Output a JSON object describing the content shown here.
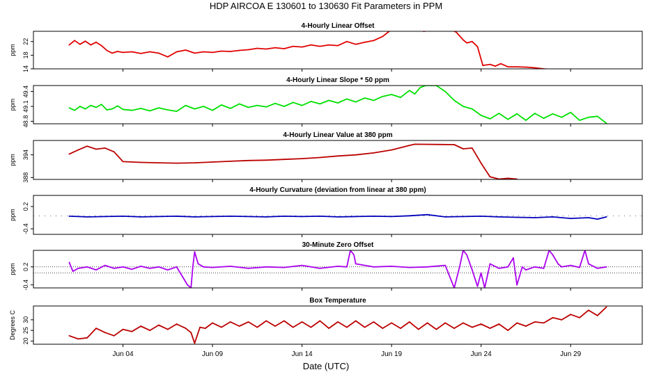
{
  "header": {
    "title": "HDP    AIRCOA E    130601 to 130630    Fit Parameters in PPM"
  },
  "xaxis": {
    "label": "Date (UTC)",
    "ticks": [
      "Jun 04",
      "Jun 09",
      "Jun 14",
      "Jun 19",
      "Jun 24",
      "Jun 29"
    ]
  },
  "chart_data": [
    {
      "type": "line",
      "title": "4-Hourly Linear Offset",
      "ylabel": "ppm",
      "ylim": [
        14,
        25
      ],
      "yticks": [
        "14",
        "18",
        "22"
      ],
      "color": "#e00000",
      "series": [
        {
          "x": [
            1.0,
            1.3,
            1.6,
            1.9,
            2.2,
            2.5,
            2.8,
            3.1,
            3.4,
            3.7,
            4.0,
            4.5,
            5.0,
            5.5,
            6.0,
            6.5,
            7.0,
            7.5,
            8.0,
            8.5,
            9.0,
            9.5,
            10.0,
            10.5,
            11.0,
            11.5,
            12.0,
            12.5,
            13.0,
            13.5,
            14.0,
            14.5,
            15.0,
            15.5,
            16.0,
            16.5,
            17.0,
            17.5,
            18.0,
            18.5,
            19.0,
            19.5,
            20.0,
            20.5,
            20.8,
            21.7,
            22.3,
            22.6,
            23.0,
            23.2,
            23.5,
            23.8,
            24.1,
            24.5,
            24.8,
            25.1,
            25.5,
            26.0,
            26.5,
            27.0,
            27.5,
            28.0
          ],
          "y": [
            21.0,
            22.3,
            21.2,
            22.1,
            21.0,
            21.8,
            20.8,
            19.4,
            18.6,
            19.1,
            18.8,
            19.0,
            18.5,
            19.0,
            18.6,
            17.5,
            19.0,
            19.5,
            18.6,
            19.0,
            18.8,
            19.2,
            19.1,
            19.4,
            19.6,
            20.0,
            19.8,
            20.2,
            19.9,
            20.6,
            20.4,
            21.0,
            20.6,
            21.0,
            20.8,
            22.0,
            21.2,
            21.8,
            22.3,
            23.5,
            25.5,
            25.3,
            25.2,
            25.4,
            25.0,
            25.5,
            25.5,
            24.8,
            22.5,
            21.6,
            22.0,
            20.5,
            15.0,
            15.3,
            14.8,
            15.5,
            14.6,
            14.6,
            14.5,
            14.3,
            14.0,
            13.8
          ]
        }
      ]
    },
    {
      "type": "line",
      "title": "4-Hourly Linear Slope * 50 ppm",
      "ylabel": "ppm",
      "ylim": [
        48.75,
        49.52
      ],
      "yticks": [
        "48.8",
        "49.1",
        "49.4"
      ],
      "color": "#00e000",
      "series": [
        {
          "x": [
            1.0,
            1.3,
            1.6,
            1.9,
            2.2,
            2.5,
            2.8,
            3.1,
            3.4,
            3.7,
            4.0,
            4.5,
            5.0,
            5.5,
            6.0,
            6.5,
            7.0,
            7.5,
            8.0,
            8.5,
            9.0,
            9.5,
            10.0,
            10.5,
            11.0,
            11.5,
            12.0,
            12.5,
            13.0,
            13.5,
            14.0,
            14.5,
            15.0,
            15.5,
            16.0,
            16.5,
            17.0,
            17.5,
            18.0,
            18.5,
            19.0,
            19.5,
            20.0,
            20.3,
            20.6,
            20.9,
            21.2,
            21.5,
            22.0,
            22.5,
            23.0,
            23.5,
            24.0,
            24.5,
            25.0,
            25.5,
            26.0,
            26.5,
            27.0,
            27.5,
            28.0,
            28.5,
            29.0,
            29.5,
            30.0,
            30.5,
            31.0
          ],
          "y": [
            49.07,
            49.02,
            49.1,
            49.05,
            49.12,
            49.08,
            49.14,
            49.03,
            49.05,
            49.11,
            49.04,
            49.02,
            49.06,
            49.01,
            49.07,
            49.03,
            49.0,
            49.12,
            49.05,
            49.1,
            49.02,
            49.13,
            49.06,
            49.15,
            49.08,
            49.12,
            49.09,
            49.16,
            49.1,
            49.18,
            49.12,
            49.2,
            49.15,
            49.22,
            49.17,
            49.25,
            49.19,
            49.27,
            49.22,
            49.3,
            49.34,
            49.28,
            49.42,
            49.35,
            49.48,
            49.52,
            49.52,
            49.52,
            49.4,
            49.22,
            49.1,
            49.05,
            48.92,
            48.85,
            48.96,
            48.84,
            48.95,
            48.82,
            48.96,
            48.86,
            48.95,
            48.88,
            48.98,
            48.82,
            48.88,
            48.9,
            48.76
          ]
        }
      ]
    },
    {
      "type": "line",
      "title": "4-Hourly Linear Value at 380 ppm",
      "ylabel": "ppm",
      "ylim": [
        387.5,
        397.8
      ],
      "yticks": [
        "388",
        "394"
      ],
      "color": "#bb0000",
      "series": [
        {
          "x": [
            1.0,
            1.5,
            2.0,
            2.5,
            3.0,
            3.5,
            4.0,
            5.0,
            6.0,
            7.0,
            8.0,
            9.0,
            10.0,
            11.0,
            12.0,
            13.0,
            14.0,
            15.0,
            16.0,
            17.0,
            18.0,
            19.0,
            20.0,
            20.3,
            22.5,
            23.0,
            23.5,
            24.0,
            24.5,
            25.0,
            25.5,
            26.0
          ],
          "y": [
            394.2,
            395.3,
            396.3,
            395.5,
            395.8,
            394.8,
            392.2,
            392.0,
            391.9,
            391.8,
            391.9,
            392.1,
            392.3,
            392.5,
            392.6,
            392.8,
            393.0,
            393.3,
            393.7,
            394.0,
            394.5,
            395.3,
            396.5,
            396.8,
            396.7,
            395.6,
            395.8,
            391.8,
            388.2,
            387.6,
            387.8,
            387.6
          ]
        }
      ]
    },
    {
      "type": "line",
      "title": "4-Hourly Curvature (deviation from linear at 380 ppm)",
      "ylabel": "ppm",
      "ylim": [
        -0.55,
        0.5
      ],
      "yticks": [
        "-0.4",
        "0.2"
      ],
      "color": "#0000bb",
      "series": [
        {
          "x": [
            1.0,
            2.0,
            3.0,
            4.0,
            5.0,
            6.0,
            7.0,
            8.0,
            9.0,
            10.0,
            11.0,
            12.0,
            13.0,
            14.0,
            15.0,
            16.0,
            17.0,
            18.0,
            19.0,
            20.0,
            21.0,
            22.0,
            23.0,
            24.0,
            25.0,
            26.0,
            27.0,
            28.0,
            29.0,
            30.0,
            30.5,
            31.0
          ],
          "y": [
            -0.06,
            -0.08,
            -0.07,
            -0.06,
            -0.08,
            -0.07,
            -0.06,
            -0.08,
            -0.07,
            -0.06,
            -0.07,
            -0.08,
            -0.06,
            -0.07,
            -0.06,
            -0.08,
            -0.07,
            -0.06,
            -0.07,
            -0.05,
            -0.02,
            -0.08,
            -0.07,
            -0.06,
            -0.08,
            -0.09,
            -0.1,
            -0.08,
            -0.12,
            -0.1,
            -0.14,
            -0.08
          ]
        }
      ]
    },
    {
      "type": "line",
      "title": "30-Minute Zero Offset",
      "ylabel": "ppm",
      "ylim": [
        -0.5,
        0.75
      ],
      "yticks": [
        "-0.4",
        "0.2"
      ],
      "color": "#aa00ee",
      "reference_lines": [
        0.2,
        0.0
      ],
      "series": [
        {
          "x": [
            1.0,
            1.2,
            1.5,
            2.0,
            2.5,
            3.0,
            3.5,
            4.0,
            4.5,
            5.0,
            5.5,
            6.0,
            6.5,
            7.0,
            7.4,
            7.6,
            7.8,
            7.9,
            8.0,
            8.2,
            8.5,
            9.0,
            10.0,
            11.0,
            12.0,
            13.0,
            14.0,
            15.0,
            16.0,
            16.5,
            16.7,
            16.9,
            17.0,
            18.0,
            19.0,
            20.0,
            21.0,
            22.0,
            22.3,
            22.5,
            22.8,
            23.0,
            23.2,
            23.5,
            23.8,
            24.0,
            24.2,
            24.5,
            25.0,
            25.5,
            25.8,
            26.0,
            26.3,
            26.5,
            27.0,
            27.5,
            27.8,
            28.0,
            28.3,
            28.5,
            29.0,
            29.5,
            29.8,
            30.0,
            30.5,
            31.0
          ],
          "y": [
            0.35,
            0.05,
            0.15,
            0.2,
            0.1,
            0.25,
            0.15,
            0.2,
            0.12,
            0.22,
            0.15,
            0.2,
            0.1,
            0.2,
            -0.2,
            -0.4,
            -0.5,
            0.2,
            0.7,
            0.3,
            0.2,
            0.18,
            0.22,
            0.15,
            0.2,
            0.18,
            0.25,
            0.15,
            0.22,
            0.2,
            0.75,
            0.6,
            0.3,
            0.2,
            0.22,
            0.18,
            0.2,
            0.25,
            -0.2,
            -0.5,
            0.2,
            0.75,
            0.6,
            0.1,
            -0.45,
            0.0,
            -0.5,
            0.3,
            0.15,
            0.2,
            0.5,
            -0.4,
            0.2,
            0.1,
            0.2,
            0.15,
            0.75,
            0.6,
            0.3,
            0.2,
            0.25,
            0.18,
            0.75,
            0.3,
            0.15,
            0.2
          ]
        }
      ]
    },
    {
      "type": "line",
      "title": "Box Temperature",
      "ylabel": "Degrees C",
      "ylim": [
        18.5,
        36.5
      ],
      "yticks": [
        "20",
        "25",
        "30"
      ],
      "color": "#bb0000",
      "series": [
        {
          "x": [
            1.0,
            1.5,
            2.0,
            2.5,
            3.0,
            3.5,
            4.0,
            4.5,
            5.0,
            5.5,
            6.0,
            6.5,
            7.0,
            7.5,
            7.8,
            8.0,
            8.3,
            8.6,
            9.0,
            9.5,
            10.0,
            10.5,
            11.0,
            11.5,
            12.0,
            12.5,
            13.0,
            13.5,
            14.0,
            14.5,
            15.0,
            15.5,
            16.0,
            16.5,
            17.0,
            17.5,
            18.0,
            18.5,
            19.0,
            19.5,
            20.0,
            20.5,
            21.0,
            21.5,
            22.0,
            22.5,
            23.0,
            23.5,
            24.0,
            24.5,
            25.0,
            25.5,
            26.0,
            26.5,
            27.0,
            27.5,
            28.0,
            28.5,
            29.0,
            29.5,
            30.0,
            30.5,
            31.0
          ],
          "y": [
            22.5,
            21.0,
            21.5,
            26.0,
            24.0,
            22.5,
            25.5,
            24.5,
            27.0,
            25.0,
            27.5,
            25.5,
            28.0,
            26.0,
            24.0,
            19.0,
            26.5,
            26.0,
            28.5,
            26.5,
            29.0,
            27.0,
            29.0,
            26.5,
            29.5,
            27.0,
            29.5,
            26.5,
            29.0,
            26.5,
            29.5,
            26.0,
            29.0,
            26.5,
            29.5,
            26.5,
            29.0,
            26.0,
            28.5,
            26.0,
            29.0,
            25.5,
            28.5,
            25.5,
            28.5,
            26.0,
            28.5,
            26.5,
            28.0,
            26.0,
            28.0,
            25.0,
            28.5,
            27.0,
            29.0,
            28.5,
            31.0,
            30.0,
            32.5,
            31.0,
            34.5,
            32.0,
            36.0
          ]
        }
      ]
    }
  ]
}
